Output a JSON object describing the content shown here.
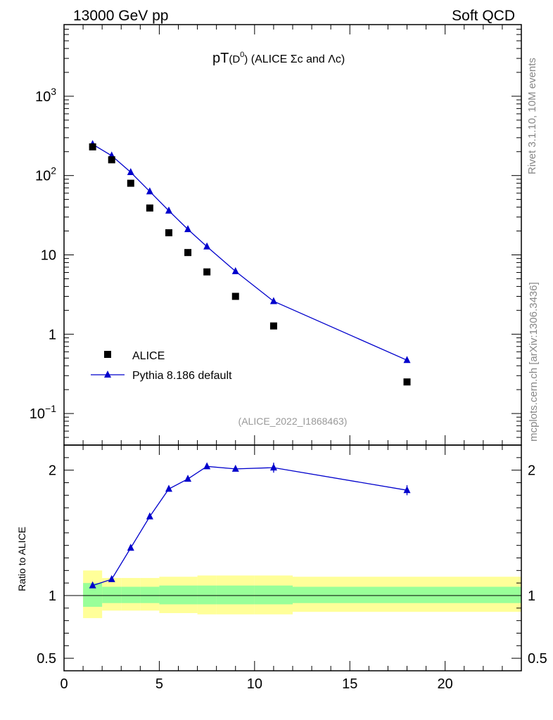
{
  "header": {
    "left": "13000 GeV pp",
    "right": "Soft QCD"
  },
  "title": {
    "main": "pT",
    "sub_open": "(D",
    "sub_sup": "0",
    "sub_close": ")",
    "rest": " (ALICE Σc and Λc)"
  },
  "side_labels": {
    "rivet": "Rivet 3.1.10,  10M events",
    "mcplots": "mcplots.cern.ch [arXiv:1306.3436]"
  },
  "analysis_id": "(ALICE_2022_I1868463)",
  "colors": {
    "data": "#000000",
    "mc": "#0000cc",
    "band_inner": "#99ff99",
    "band_outer": "#ffff99"
  },
  "chart_data": [
    {
      "type": "scatter",
      "name": "main",
      "yscale": "log",
      "xlim": [
        0,
        24
      ],
      "ylim": [
        0.04,
        8000
      ],
      "yticks": [
        {
          "value": 0.1,
          "base": "10",
          "exp": "−1"
        },
        {
          "value": 1,
          "label": "1"
        },
        {
          "value": 10,
          "label": "10"
        },
        {
          "value": 100,
          "base": "10",
          "exp": "2"
        },
        {
          "value": 1000,
          "base": "10",
          "exp": "3"
        }
      ],
      "series": [
        {
          "name": "ALICE",
          "marker": "square",
          "x": [
            1.5,
            2.5,
            3.5,
            4.5,
            5.5,
            6.5,
            7.5,
            9,
            11,
            18
          ],
          "y": [
            230,
            158,
            80,
            39,
            19,
            10.7,
            6.1,
            3.0,
            1.27,
            0.25
          ]
        },
        {
          "name": "Pythia 8.186 default",
          "marker": "triangle",
          "line": true,
          "x": [
            1.5,
            2.5,
            3.5,
            4.5,
            5.5,
            6.5,
            7.5,
            9,
            11,
            18
          ],
          "y": [
            248,
            178,
            110,
            63,
            36,
            21,
            12.7,
            6.2,
            2.6,
            0.47
          ]
        }
      ],
      "legend": [
        "ALICE",
        "Pythia 8.186 default"
      ]
    },
    {
      "type": "line",
      "name": "ratio",
      "ylabel": "Ratio to ALICE",
      "xlim": [
        0,
        24
      ],
      "ylim": [
        0.4,
        2.2
      ],
      "yticks": [
        {
          "value": 0.5,
          "label": "0.5"
        },
        {
          "value": 1,
          "label": "1"
        },
        {
          "value": 2,
          "label": "2"
        }
      ],
      "xticks": [
        {
          "value": 0,
          "label": "0"
        },
        {
          "value": 5,
          "label": "5"
        },
        {
          "value": 10,
          "label": "10"
        },
        {
          "value": 15,
          "label": "15"
        },
        {
          "value": 20,
          "label": "20"
        }
      ],
      "ratio": {
        "x": [
          1.5,
          2.5,
          3.5,
          4.5,
          5.5,
          6.5,
          7.5,
          9,
          11,
          18
        ],
        "y": [
          1.08,
          1.13,
          1.38,
          1.63,
          1.85,
          1.93,
          2.03,
          2.01,
          2.02,
          1.84
        ],
        "err": [
          0.0,
          0.0,
          0.0,
          0.0,
          0.0,
          0.0,
          0.0,
          0.02,
          0.04,
          0.04
        ]
      },
      "bands": [
        {
          "x0": 1,
          "x1": 2,
          "inner": [
            0.91,
            1.1
          ],
          "outer": [
            0.82,
            1.2
          ]
        },
        {
          "x0": 2,
          "x1": 3,
          "inner": [
            0.94,
            1.07
          ],
          "outer": [
            0.88,
            1.14
          ]
        },
        {
          "x0": 3,
          "x1": 4,
          "inner": [
            0.94,
            1.07
          ],
          "outer": [
            0.88,
            1.14
          ]
        },
        {
          "x0": 4,
          "x1": 5,
          "inner": [
            0.94,
            1.07
          ],
          "outer": [
            0.88,
            1.14
          ]
        },
        {
          "x0": 5,
          "x1": 6,
          "inner": [
            0.93,
            1.08
          ],
          "outer": [
            0.86,
            1.15
          ]
        },
        {
          "x0": 6,
          "x1": 7,
          "inner": [
            0.93,
            1.08
          ],
          "outer": [
            0.86,
            1.15
          ]
        },
        {
          "x0": 7,
          "x1": 8,
          "inner": [
            0.93,
            1.08
          ],
          "outer": [
            0.85,
            1.16
          ]
        },
        {
          "x0": 8,
          "x1": 10,
          "inner": [
            0.93,
            1.08
          ],
          "outer": [
            0.85,
            1.16
          ]
        },
        {
          "x0": 10,
          "x1": 12,
          "inner": [
            0.93,
            1.08
          ],
          "outer": [
            0.85,
            1.16
          ]
        },
        {
          "x0": 12,
          "x1": 24,
          "inner": [
            0.94,
            1.07
          ],
          "outer": [
            0.87,
            1.15
          ]
        }
      ]
    }
  ]
}
